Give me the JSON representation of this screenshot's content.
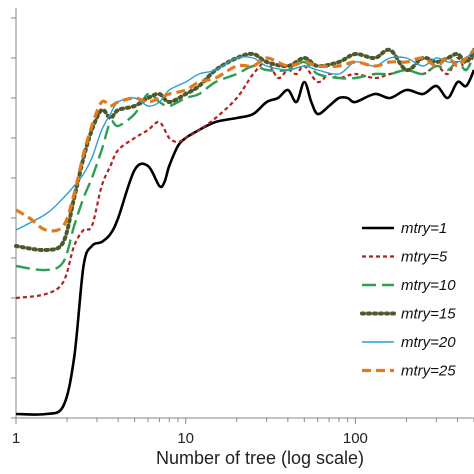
{
  "chart_data": {
    "type": "line",
    "title": "",
    "xlabel": "Number of tree (log scale)",
    "ylabel": "",
    "x_scale": "log",
    "xlim": [
      1,
      500
    ],
    "ylim": [
      0,
      1
    ],
    "x_ticks": [
      1,
      10,
      100
    ],
    "x_tick_labels": [
      "1",
      "10",
      "100"
    ],
    "y_tick_count": 11,
    "y_tick_labels_visible": false,
    "grid": false,
    "legend_position": "right",
    "series": [
      {
        "name": "mtry=1",
        "color": "#000000",
        "dash": "solid",
        "x": [
          1,
          1.5,
          1.9,
          2.2,
          2.5,
          2.8,
          3.2,
          3.6,
          4,
          5,
          6,
          7,
          7.5,
          8,
          9,
          10,
          12,
          15,
          20,
          25,
          30,
          35,
          40,
          45,
          50,
          55,
          60,
          70,
          80,
          90,
          100,
          130,
          160,
          200,
          250,
          300,
          350,
          400,
          450,
          500
        ],
        "y": [
          0.01,
          0.01,
          0.03,
          0.15,
          0.38,
          0.43,
          0.44,
          0.46,
          0.5,
          0.62,
          0.63,
          0.58,
          0.59,
          0.63,
          0.68,
          0.7,
          0.72,
          0.74,
          0.75,
          0.76,
          0.79,
          0.8,
          0.82,
          0.79,
          0.84,
          0.79,
          0.76,
          0.78,
          0.8,
          0.8,
          0.79,
          0.81,
          0.8,
          0.82,
          0.81,
          0.83,
          0.8,
          0.84,
          0.83,
          0.87
        ]
      },
      {
        "name": "mtry=5",
        "color": "#b22222",
        "dash": "4,3",
        "x": [
          1,
          1.5,
          1.9,
          2.2,
          2.5,
          2.8,
          3.2,
          3.6,
          4,
          5,
          6,
          7,
          8,
          9,
          10,
          12,
          15,
          20,
          25,
          30,
          35,
          40,
          45,
          50,
          60,
          70,
          80,
          100,
          130,
          160,
          200,
          250,
          300,
          350,
          400,
          450,
          500
        ],
        "y": [
          0.3,
          0.31,
          0.34,
          0.43,
          0.47,
          0.48,
          0.58,
          0.63,
          0.67,
          0.7,
          0.72,
          0.74,
          0.7,
          0.69,
          0.7,
          0.72,
          0.75,
          0.8,
          0.86,
          0.89,
          0.85,
          0.87,
          0.86,
          0.88,
          0.84,
          0.86,
          0.85,
          0.86,
          0.85,
          0.86,
          0.87,
          0.86,
          0.88,
          0.86,
          0.9,
          0.87,
          0.91
        ]
      },
      {
        "name": "mtry=10",
        "color": "#2e9e55",
        "dash": "14,6",
        "x": [
          1,
          1.5,
          1.9,
          2.2,
          2.5,
          2.8,
          3.2,
          3.6,
          4,
          5,
          6,
          7,
          8,
          10,
          12,
          15,
          20,
          25,
          30,
          40,
          50,
          60,
          80,
          100,
          130,
          160,
          200,
          250,
          300,
          350,
          400,
          450,
          500
        ],
        "y": [
          0.38,
          0.37,
          0.39,
          0.48,
          0.55,
          0.6,
          0.67,
          0.74,
          0.73,
          0.76,
          0.81,
          0.79,
          0.78,
          0.8,
          0.81,
          0.84,
          0.86,
          0.88,
          0.87,
          0.87,
          0.89,
          0.86,
          0.85,
          0.85,
          0.86,
          0.86,
          0.87,
          0.86,
          0.88,
          0.87,
          0.89,
          0.87,
          0.91
        ]
      },
      {
        "name": "mtry=15",
        "color": "#4a5a2a",
        "dash": "2,4",
        "x": [
          1,
          1.5,
          1.9,
          2.2,
          2.5,
          2.8,
          3.2,
          3.6,
          4,
          5,
          6,
          7,
          8,
          10,
          12,
          15,
          20,
          25,
          30,
          40,
          50,
          60,
          80,
          100,
          130,
          160,
          200,
          250,
          300,
          350,
          400,
          450,
          500
        ],
        "y": [
          0.43,
          0.42,
          0.44,
          0.55,
          0.65,
          0.72,
          0.77,
          0.75,
          0.77,
          0.78,
          0.8,
          0.81,
          0.79,
          0.81,
          0.83,
          0.87,
          0.9,
          0.91,
          0.89,
          0.88,
          0.9,
          0.88,
          0.89,
          0.91,
          0.9,
          0.92,
          0.87,
          0.9,
          0.89,
          0.9,
          0.91,
          0.89,
          0.92
        ]
      },
      {
        "name": "mtry=20",
        "color": "#2a9fd6",
        "dash": "solid",
        "x": [
          1,
          1.5,
          1.9,
          2.2,
          2.5,
          2.8,
          3.2,
          3.6,
          4,
          5,
          6,
          7,
          8,
          10,
          12,
          15,
          20,
          25,
          30,
          40,
          50,
          60,
          80,
          100,
          130,
          160,
          200,
          250,
          300,
          350,
          400,
          450,
          500
        ],
        "y": [
          0.47,
          0.51,
          0.55,
          0.58,
          0.61,
          0.65,
          0.72,
          0.76,
          0.79,
          0.8,
          0.78,
          0.79,
          0.82,
          0.84,
          0.86,
          0.87,
          0.9,
          0.9,
          0.88,
          0.87,
          0.88,
          0.87,
          0.86,
          0.89,
          0.88,
          0.9,
          0.9,
          0.88,
          0.9,
          0.89,
          0.89,
          0.9,
          0.92
        ]
      },
      {
        "name": "mtry=25",
        "color": "#e07a1f",
        "dash": "9,5",
        "x": [
          1,
          1.2,
          1.5,
          1.9,
          2.2,
          2.5,
          2.8,
          3.2,
          3.6,
          4,
          5,
          6,
          7,
          8,
          10,
          12,
          15,
          20,
          25,
          30,
          40,
          50,
          60,
          80,
          100,
          130,
          160,
          200,
          250,
          300,
          350,
          400,
          450,
          500
        ],
        "y": [
          0.52,
          0.5,
          0.47,
          0.48,
          0.56,
          0.66,
          0.73,
          0.79,
          0.78,
          0.79,
          0.8,
          0.79,
          0.8,
          0.81,
          0.82,
          0.84,
          0.85,
          0.88,
          0.88,
          0.9,
          0.88,
          0.89,
          0.88,
          0.88,
          0.89,
          0.88,
          0.89,
          0.89,
          0.9,
          0.88,
          0.9,
          0.88,
          0.9,
          0.92
        ]
      }
    ]
  }
}
